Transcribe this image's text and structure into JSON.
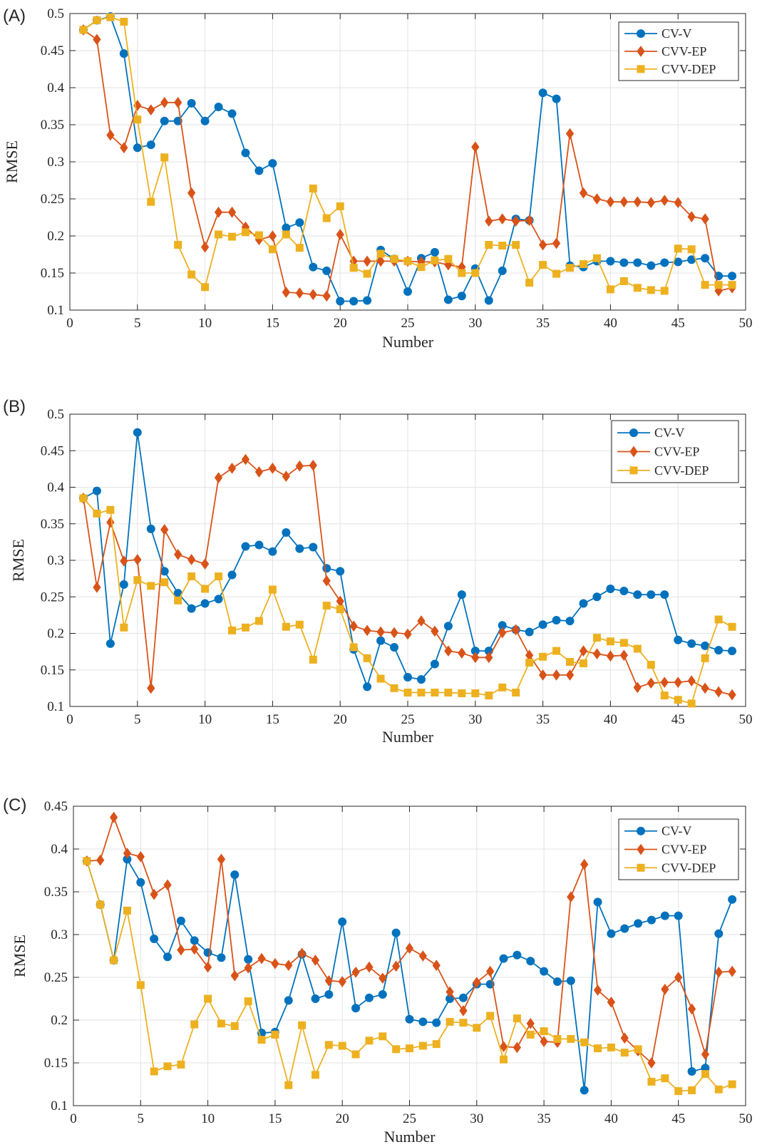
{
  "chart_data": [
    {
      "type": "line",
      "panel_label": "(A)",
      "xlabel": "Number",
      "ylabel": "RMSE",
      "xlim": [
        0,
        50
      ],
      "ylim": [
        0.1,
        0.5
      ],
      "xticks": [
        "0",
        "5",
        "10",
        "15",
        "20",
        "25",
        "30",
        "35",
        "40",
        "45",
        "50"
      ],
      "yticks": [
        "0.1",
        "0.15",
        "0.2",
        "0.25",
        "0.3",
        "0.35",
        "0.4",
        "0.45",
        "0.5"
      ],
      "grid": true,
      "legend_position": "top-right",
      "x": [
        1,
        2,
        3,
        4,
        5,
        6,
        7,
        8,
        9,
        10,
        11,
        12,
        13,
        14,
        15,
        16,
        17,
        18,
        19,
        20,
        21,
        22,
        23,
        24,
        25,
        26,
        27,
        28,
        29,
        30,
        31,
        32,
        33,
        34,
        35,
        36,
        37,
        38,
        39,
        40,
        41,
        42,
        43,
        44,
        45,
        46,
        47,
        48,
        49
      ],
      "series": [
        {
          "name": "CV-V",
          "color": "#0072BD",
          "marker": "circle",
          "values": [
            0.478,
            0.491,
            0.496,
            0.446,
            0.319,
            0.323,
            0.355,
            0.355,
            0.379,
            0.355,
            0.374,
            0.365,
            0.312,
            0.288,
            0.298,
            0.211,
            0.218,
            0.158,
            0.153,
            0.112,
            0.112,
            0.113,
            0.181,
            0.169,
            0.125,
            0.17,
            0.178,
            0.114,
            0.119,
            0.156,
            0.113,
            0.153,
            0.223,
            0.221,
            0.393,
            0.385,
            0.16,
            0.158,
            0.166,
            0.166,
            0.164,
            0.164,
            0.16,
            0.164,
            0.165,
            0.168,
            0.17,
            0.146,
            0.146
          ]
        },
        {
          "name": "CVV-EP",
          "color": "#D95319",
          "marker": "diamond",
          "values": [
            0.478,
            0.465,
            0.336,
            0.319,
            0.376,
            0.37,
            0.38,
            0.38,
            0.258,
            0.185,
            0.232,
            0.232,
            0.212,
            0.195,
            0.2,
            0.124,
            0.123,
            0.121,
            0.119,
            0.202,
            0.166,
            0.166,
            0.166,
            0.166,
            0.166,
            0.165,
            0.165,
            0.161,
            0.158,
            0.32,
            0.22,
            0.223,
            0.22,
            0.221,
            0.188,
            0.19,
            0.338,
            0.258,
            0.25,
            0.246,
            0.246,
            0.246,
            0.245,
            0.248,
            0.245,
            0.226,
            0.223,
            0.126,
            0.13
          ]
        },
        {
          "name": "CVV-DEP",
          "color": "#EDB120",
          "marker": "square",
          "values": [
            0.478,
            0.491,
            0.495,
            0.489,
            0.357,
            0.246,
            0.306,
            0.188,
            0.148,
            0.131,
            0.202,
            0.199,
            0.205,
            0.201,
            0.182,
            0.202,
            0.184,
            0.264,
            0.224,
            0.24,
            0.157,
            0.149,
            0.176,
            0.169,
            0.166,
            0.158,
            0.167,
            0.169,
            0.15,
            0.15,
            0.188,
            0.187,
            0.188,
            0.137,
            0.161,
            0.149,
            0.157,
            0.162,
            0.17,
            0.128,
            0.139,
            0.13,
            0.127,
            0.126,
            0.183,
            0.182,
            0.134,
            0.134,
            0.134
          ]
        }
      ]
    },
    {
      "type": "line",
      "panel_label": "(B)",
      "xlabel": "Number",
      "ylabel": "RMSE",
      "xlim": [
        0,
        50
      ],
      "ylim": [
        0.1,
        0.5
      ],
      "xticks": [
        "0",
        "5",
        "10",
        "15",
        "20",
        "25",
        "30",
        "35",
        "40",
        "45",
        "50"
      ],
      "yticks": [
        "0.1",
        "0.15",
        "0.2",
        "0.25",
        "0.3",
        "0.35",
        "0.4",
        "0.45",
        "0.5"
      ],
      "grid": true,
      "legend_position": "top-right",
      "x": [
        1,
        2,
        3,
        4,
        5,
        6,
        7,
        8,
        9,
        10,
        11,
        12,
        13,
        14,
        15,
        16,
        17,
        18,
        19,
        20,
        21,
        22,
        23,
        24,
        25,
        26,
        27,
        28,
        29,
        30,
        31,
        32,
        33,
        34,
        35,
        36,
        37,
        38,
        39,
        40,
        41,
        42,
        43,
        44,
        45,
        46,
        47,
        48,
        49
      ],
      "series": [
        {
          "name": "CV-V",
          "color": "#0072BD",
          "marker": "circle",
          "values": [
            0.385,
            0.395,
            0.186,
            0.267,
            0.475,
            0.343,
            0.285,
            0.255,
            0.234,
            0.241,
            0.247,
            0.28,
            0.319,
            0.321,
            0.312,
            0.338,
            0.316,
            0.318,
            0.289,
            0.285,
            0.178,
            0.127,
            0.19,
            0.181,
            0.14,
            0.137,
            0.158,
            0.21,
            0.253,
            0.176,
            0.176,
            0.211,
            0.205,
            0.202,
            0.212,
            0.218,
            0.217,
            0.241,
            0.25,
            0.261,
            0.258,
            0.253,
            0.253,
            0.253,
            0.191,
            0.186,
            0.183,
            0.177,
            0.176
          ]
        },
        {
          "name": "CVV-EP",
          "color": "#D95319",
          "marker": "diamond",
          "values": [
            0.385,
            0.263,
            0.352,
            0.299,
            0.301,
            0.125,
            0.342,
            0.308,
            0.301,
            0.295,
            0.413,
            0.426,
            0.438,
            0.421,
            0.426,
            0.415,
            0.429,
            0.43,
            0.272,
            0.244,
            0.21,
            0.204,
            0.202,
            0.201,
            0.199,
            0.217,
            0.203,
            0.176,
            0.173,
            0.167,
            0.167,
            0.201,
            0.205,
            0.17,
            0.143,
            0.143,
            0.143,
            0.176,
            0.172,
            0.169,
            0.17,
            0.126,
            0.132,
            0.133,
            0.133,
            0.135,
            0.125,
            0.12,
            0.116
          ]
        },
        {
          "name": "CVV-DEP",
          "color": "#EDB120",
          "marker": "square",
          "values": [
            0.385,
            0.364,
            0.369,
            0.208,
            0.273,
            0.265,
            0.27,
            0.245,
            0.278,
            0.261,
            0.278,
            0.204,
            0.208,
            0.217,
            0.26,
            0.209,
            0.212,
            0.164,
            0.238,
            0.233,
            0.181,
            0.166,
            0.138,
            0.125,
            0.119,
            0.119,
            0.119,
            0.119,
            0.118,
            0.118,
            0.115,
            0.126,
            0.119,
            0.16,
            0.168,
            0.176,
            0.161,
            0.159,
            0.194,
            0.189,
            0.187,
            0.179,
            0.157,
            0.115,
            0.109,
            0.104,
            0.166,
            0.219,
            0.209
          ]
        }
      ]
    },
    {
      "type": "line",
      "panel_label": "(C)",
      "xlabel": "Number",
      "ylabel": "RMSE",
      "xlim": [
        0,
        50
      ],
      "ylim": [
        0.1,
        0.45
      ],
      "xticks": [
        "0",
        "5",
        "10",
        "15",
        "20",
        "25",
        "30",
        "35",
        "40",
        "45",
        "50"
      ],
      "yticks": [
        "0.1",
        "0.15",
        "0.2",
        "0.25",
        "0.3",
        "0.35",
        "0.4",
        "0.45"
      ],
      "grid": true,
      "legend_position": "top-right",
      "x": [
        1,
        2,
        3,
        4,
        5,
        6,
        7,
        8,
        9,
        10,
        11,
        12,
        13,
        14,
        15,
        16,
        17,
        18,
        19,
        20,
        21,
        22,
        23,
        24,
        25,
        26,
        27,
        28,
        29,
        30,
        31,
        32,
        33,
        34,
        35,
        36,
        37,
        38,
        39,
        40,
        41,
        42,
        43,
        44,
        45,
        46,
        47,
        48,
        49
      ],
      "series": [
        {
          "name": "CV-V",
          "color": "#0072BD",
          "marker": "circle",
          "values": [
            0.386,
            0.335,
            0.27,
            0.388,
            0.361,
            0.295,
            0.274,
            0.316,
            0.293,
            0.279,
            0.273,
            0.37,
            0.271,
            0.185,
            0.186,
            0.223,
            0.277,
            0.225,
            0.23,
            0.315,
            0.214,
            0.226,
            0.23,
            0.302,
            0.201,
            0.198,
            0.197,
            0.225,
            0.226,
            0.242,
            0.242,
            0.272,
            0.276,
            0.269,
            0.257,
            0.245,
            0.246,
            0.118,
            0.338,
            0.301,
            0.307,
            0.313,
            0.317,
            0.322,
            0.322,
            0.14,
            0.144,
            0.301,
            0.341
          ]
        },
        {
          "name": "CVV-EP",
          "color": "#D95319",
          "marker": "diamond",
          "values": [
            0.386,
            0.387,
            0.437,
            0.395,
            0.391,
            0.347,
            0.358,
            0.282,
            0.283,
            0.262,
            0.388,
            0.252,
            0.261,
            0.272,
            0.266,
            0.264,
            0.278,
            0.27,
            0.246,
            0.245,
            0.256,
            0.262,
            0.249,
            0.263,
            0.284,
            0.275,
            0.264,
            0.233,
            0.211,
            0.244,
            0.257,
            0.169,
            0.168,
            0.196,
            0.175,
            0.174,
            0.344,
            0.382,
            0.235,
            0.221,
            0.179,
            0.164,
            0.15,
            0.236,
            0.25,
            0.213,
            0.16,
            0.256,
            0.257
          ]
        },
        {
          "name": "CVV-DEP",
          "color": "#EDB120",
          "marker": "square",
          "values": [
            0.386,
            0.335,
            0.27,
            0.328,
            0.241,
            0.14,
            0.146,
            0.148,
            0.195,
            0.225,
            0.196,
            0.193,
            0.222,
            0.177,
            0.183,
            0.124,
            0.194,
            0.136,
            0.171,
            0.17,
            0.16,
            0.176,
            0.181,
            0.166,
            0.167,
            0.17,
            0.172,
            0.198,
            0.197,
            0.191,
            0.205,
            0.154,
            0.202,
            0.183,
            0.187,
            0.178,
            0.178,
            0.174,
            0.167,
            0.168,
            0.162,
            0.166,
            0.128,
            0.132,
            0.117,
            0.118,
            0.137,
            0.119,
            0.125
          ]
        }
      ]
    }
  ]
}
